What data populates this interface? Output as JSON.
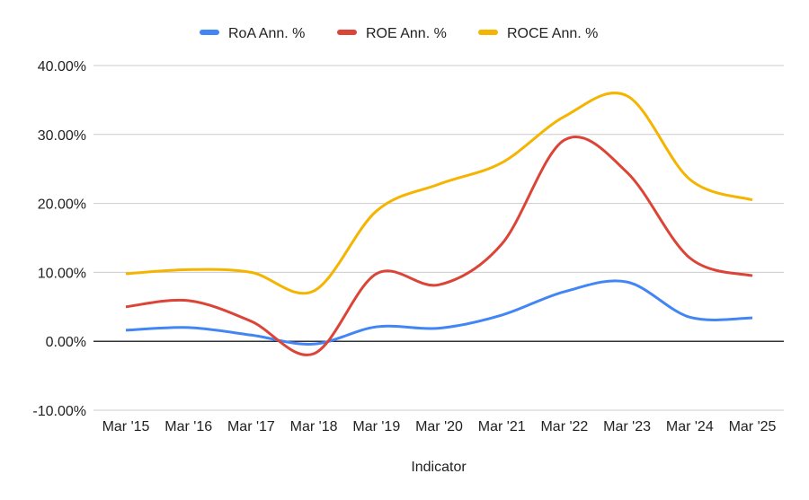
{
  "chart_data": {
    "type": "line",
    "title": "",
    "xlabel": "Indicator",
    "ylabel": "",
    "ylim": [
      -10,
      40
    ],
    "yticks": [
      "-10.00%",
      "0.00%",
      "10.00%",
      "20.00%",
      "30.00%",
      "40.00%"
    ],
    "grid": true,
    "legend": "top",
    "smooth": true,
    "categories": [
      "Mar '15",
      "Mar '16",
      "Mar '17",
      "Mar '18",
      "Mar '19",
      "Mar '20",
      "Mar '21",
      "Mar '22",
      "Mar '23",
      "Mar '24",
      "Mar '25"
    ],
    "series": [
      {
        "name": "RoA Ann. %",
        "color": "#4285f4",
        "values": [
          1.6,
          2.0,
          0.9,
          -0.4,
          2.1,
          1.9,
          3.8,
          7.2,
          8.6,
          3.5,
          3.4
        ]
      },
      {
        "name": "ROE Ann. %",
        "color": "#db4437",
        "values": [
          5.0,
          5.9,
          2.9,
          -1.8,
          9.8,
          8.2,
          14.1,
          29.2,
          24.5,
          12.1,
          9.5
        ]
      },
      {
        "name": "ROCE Ann. %",
        "color": "#f4b400",
        "values": [
          9.8,
          10.4,
          10.0,
          7.3,
          18.9,
          22.8,
          25.9,
          32.6,
          35.6,
          23.5,
          20.5
        ]
      }
    ]
  }
}
